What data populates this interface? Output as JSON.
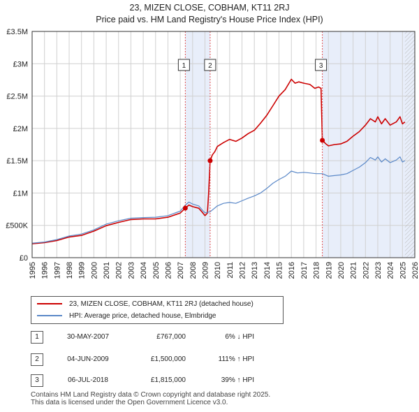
{
  "chart_data": {
    "type": "line",
    "title": "23, MIZEN CLOSE, COBHAM, KT11 2RJ",
    "subtitle": "Price paid vs. HM Land Registry's House Price Index (HPI)",
    "xlim": [
      1995,
      2026
    ],
    "ylim": [
      0,
      3500000
    ],
    "x_ticks": [
      "1995",
      "1996",
      "1997",
      "1998",
      "1999",
      "2000",
      "2001",
      "2002",
      "2003",
      "2004",
      "2005",
      "2006",
      "2007",
      "2008",
      "2009",
      "2010",
      "2011",
      "2012",
      "2013",
      "2014",
      "2015",
      "2016",
      "2017",
      "2018",
      "2019",
      "2020",
      "2021",
      "2022",
      "2023",
      "2024",
      "2025",
      "2026"
    ],
    "y_ticks": [
      {
        "value": 0,
        "label": "£0"
      },
      {
        "value": 500000,
        "label": "£500K"
      },
      {
        "value": 1000000,
        "label": "£1M"
      },
      {
        "value": 1500000,
        "label": "£1.5M"
      },
      {
        "value": 2000000,
        "label": "£2M"
      },
      {
        "value": 2500000,
        "label": "£2.5M"
      },
      {
        "value": 3000000,
        "label": "£3M"
      },
      {
        "value": 3500000,
        "label": "£3.5M"
      }
    ],
    "shaded_periods": [
      [
        2007.41,
        2009.42
      ],
      [
        2018.51,
        2026
      ]
    ],
    "hatched_after": 2025.2,
    "series": [
      {
        "name": "23, MIZEN CLOSE, COBHAM, KT11 2RJ (detached house)",
        "color": "#cc0000",
        "x": [
          1995.0,
          1996.0,
          1997.0,
          1998.0,
          1999.0,
          2000.0,
          2001.0,
          2002.0,
          2003.0,
          2004.0,
          2005.0,
          2006.0,
          2007.0,
          2007.41,
          2007.7,
          2008.0,
          2008.5,
          2008.8,
          2009.0,
          2009.2,
          2009.3,
          2009.42,
          2009.6,
          2009.8,
          2010.0,
          2010.5,
          2011.0,
          2011.5,
          2012.0,
          2012.5,
          2013.0,
          2013.5,
          2014.0,
          2014.5,
          2015.0,
          2015.5,
          2016.0,
          2016.3,
          2016.6,
          2017.0,
          2017.5,
          2017.9,
          2018.2,
          2018.4,
          2018.51,
          2018.8,
          2019.0,
          2019.5,
          2020.0,
          2020.5,
          2021.0,
          2021.5,
          2022.0,
          2022.4,
          2022.8,
          2023.0,
          2023.3,
          2023.6,
          2024.0,
          2024.5,
          2024.8,
          2025.0,
          2025.2
        ],
        "y": [
          215000,
          232000,
          265000,
          320000,
          345000,
          410000,
          495000,
          545000,
          590000,
          600000,
          600000,
          625000,
          690000,
          767000,
          815000,
          790000,
          765000,
          700000,
          650000,
          690000,
          1000000,
          1500000,
          1590000,
          1640000,
          1720000,
          1780000,
          1830000,
          1800000,
          1850000,
          1920000,
          1970000,
          2080000,
          2200000,
          2350000,
          2500000,
          2600000,
          2760000,
          2700000,
          2720000,
          2700000,
          2680000,
          2620000,
          2640000,
          2620000,
          1815000,
          1760000,
          1730000,
          1750000,
          1760000,
          1800000,
          1880000,
          1950000,
          2050000,
          2150000,
          2100000,
          2180000,
          2070000,
          2150000,
          2050000,
          2100000,
          2180000,
          2070000,
          2100000
        ]
      },
      {
        "name": "HPI: Average price, detached house, Elmbridge",
        "color": "#5a88c8",
        "x": [
          1995.0,
          1996.0,
          1997.0,
          1998.0,
          1999.0,
          2000.0,
          2001.0,
          2002.0,
          2003.0,
          2004.0,
          2005.0,
          2006.0,
          2007.0,
          2007.41,
          2007.7,
          2008.0,
          2008.5,
          2008.8,
          2009.0,
          2009.42,
          2010.0,
          2010.5,
          2011.0,
          2011.5,
          2012.0,
          2012.5,
          2013.0,
          2013.5,
          2014.0,
          2014.5,
          2015.0,
          2015.5,
          2016.0,
          2016.5,
          2017.0,
          2017.5,
          2018.0,
          2018.51,
          2019.0,
          2019.5,
          2020.0,
          2020.5,
          2021.0,
          2021.5,
          2022.0,
          2022.4,
          2022.8,
          2023.0,
          2023.3,
          2023.6,
          2024.0,
          2024.5,
          2024.8,
          2025.0,
          2025.2
        ],
        "y": [
          225000,
          242000,
          280000,
          335000,
          365000,
          430000,
          520000,
          570000,
          610000,
          620000,
          625000,
          650000,
          720000,
          815000,
          860000,
          830000,
          800000,
          735000,
          695000,
          710000,
          800000,
          840000,
          855000,
          840000,
          880000,
          920000,
          955000,
          1000000,
          1070000,
          1150000,
          1210000,
          1260000,
          1340000,
          1310000,
          1320000,
          1310000,
          1300000,
          1300000,
          1260000,
          1270000,
          1280000,
          1300000,
          1350000,
          1400000,
          1470000,
          1550000,
          1510000,
          1560000,
          1480000,
          1530000,
          1470000,
          1510000,
          1560000,
          1480000,
          1500000
        ]
      }
    ],
    "sales": [
      {
        "id": "1",
        "x": 2007.41,
        "price": 767000
      },
      {
        "id": "2",
        "x": 2009.42,
        "price": 1500000
      },
      {
        "id": "3",
        "x": 2018.51,
        "price": 1815000
      }
    ]
  },
  "legend": {
    "property_label": "23, MIZEN CLOSE, COBHAM, KT11 2RJ (detached house)",
    "hpi_label": "HPI: Average price, detached house, Elmbridge"
  },
  "sales_table": [
    {
      "id": "1",
      "date": "30-MAY-2007",
      "price": "£767,000",
      "hpi": "6% ↓ HPI"
    },
    {
      "id": "2",
      "date": "04-JUN-2009",
      "price": "£1,500,000",
      "hpi": "111% ↑ HPI"
    },
    {
      "id": "3",
      "date": "06-JUL-2018",
      "price": "£1,815,000",
      "hpi": "39% ↑ HPI"
    }
  ],
  "footer": {
    "line1": "Contains HM Land Registry data © Crown copyright and database right 2025.",
    "line2": "This data is licensed under the Open Government Licence v3.0."
  },
  "colors": {
    "property": "#cc0000",
    "hpi": "#5a88c8",
    "shade": "#e8eefa",
    "grid": "#d0d0d0",
    "marker_line": "#e05050"
  }
}
